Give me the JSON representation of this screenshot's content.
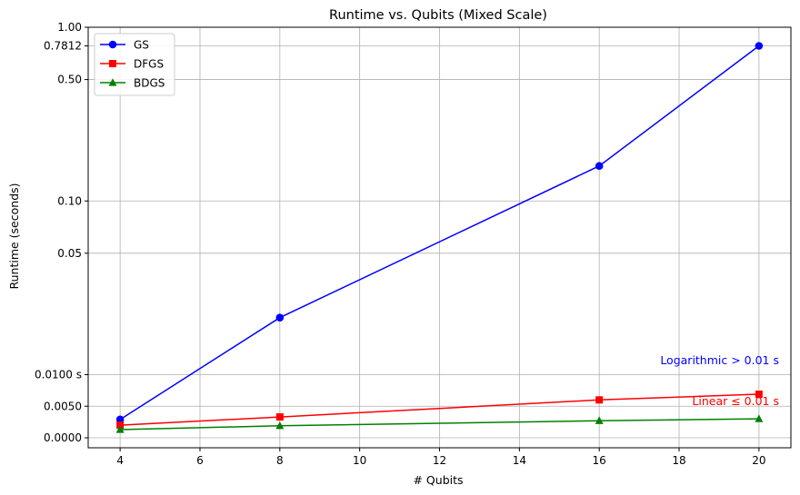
{
  "chart_data": {
    "type": "line",
    "title": "Runtime vs. Qubits (Mixed Scale)",
    "xlabel": "# Qubits",
    "ylabel": "Runtime (seconds)",
    "xlim": [
      3.2,
      20.8
    ],
    "ylim": [
      -0.0015,
      1.0
    ],
    "y_scale": "mixed: linear for values ≤ 0.01 s, logarithmic above 0.01 s",
    "x_ticks": [
      4,
      6,
      8,
      10,
      12,
      14,
      16,
      18,
      20
    ],
    "x_tick_labels": [
      "4",
      "6",
      "8",
      "10",
      "12",
      "14",
      "16",
      "18",
      "20"
    ],
    "y_ticks": [
      0.0,
      0.005,
      0.01,
      0.05,
      0.1,
      0.5,
      0.7812,
      1.0
    ],
    "y_tick_labels": [
      "0.0000",
      "0.0050",
      "0.0100 s",
      "0.05",
      "0.10",
      "0.50",
      "0.7812",
      "1.00"
    ],
    "grid": true,
    "legend_position": "upper-left",
    "x": [
      4,
      8,
      16,
      20
    ],
    "series": [
      {
        "name": "GS",
        "color": "#0000ff",
        "marker": "circle",
        "values": [
          0.0029,
          0.0213,
          0.159,
          0.7812
        ]
      },
      {
        "name": "DFGS",
        "color": "#ff0000",
        "marker": "square",
        "values": [
          0.002,
          0.0033,
          0.006,
          0.0069
        ]
      },
      {
        "name": "BDGS",
        "color": "#008000",
        "marker": "triangle",
        "values": [
          0.0013,
          0.0019,
          0.0027,
          0.003
        ]
      }
    ],
    "annotations": [
      {
        "text": "Logarithmic > 0.01 s",
        "color": "#0000ff"
      },
      {
        "text": "Linear ≤ 0.01 s",
        "color": "#ff0000"
      }
    ]
  }
}
